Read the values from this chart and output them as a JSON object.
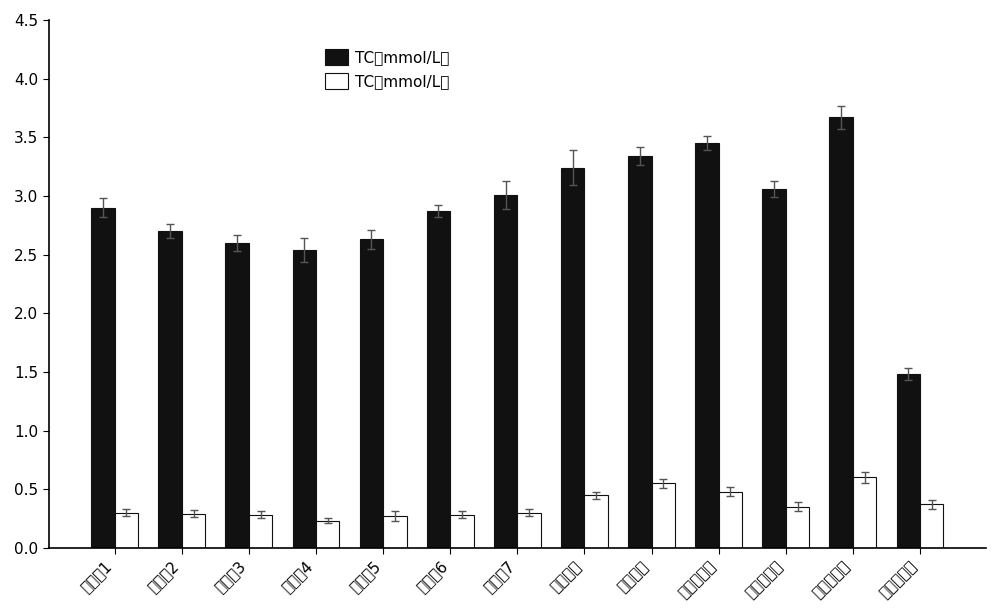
{
  "categories": [
    "实施例1",
    "实施例2",
    "实施例3",
    "实施例4",
    "实施例5",
    "实施例6",
    "实施例7",
    "人参多肽",
    "桑叶多肽",
    "苦瓜提取物",
    "阳性对照组",
    "模型对照组",
    "空白对照组"
  ],
  "black_values": [
    2.9,
    2.7,
    2.6,
    2.54,
    2.63,
    2.87,
    3.01,
    3.24,
    3.34,
    3.45,
    3.06,
    3.67,
    1.48
  ],
  "white_values": [
    0.3,
    0.29,
    0.28,
    0.23,
    0.27,
    0.28,
    0.3,
    0.45,
    0.55,
    0.48,
    0.35,
    0.6,
    0.37
  ],
  "black_errors": [
    0.08,
    0.06,
    0.07,
    0.1,
    0.08,
    0.05,
    0.12,
    0.15,
    0.08,
    0.06,
    0.07,
    0.1,
    0.05
  ],
  "white_errors": [
    0.03,
    0.03,
    0.03,
    0.02,
    0.04,
    0.03,
    0.03,
    0.03,
    0.04,
    0.04,
    0.04,
    0.05,
    0.04
  ],
  "legend_black": "TC（mmol/L）",
  "legend_white": "TC（mmol/L）",
  "ylim": [
    0,
    4.5
  ],
  "yticks": [
    0,
    0.5,
    1.0,
    1.5,
    2.0,
    2.5,
    3.0,
    3.5,
    4.0,
    4.5
  ],
  "bar_width": 0.35,
  "background_color": "#ffffff",
  "black_color": "#111111",
  "white_color": "#ffffff",
  "edge_color": "#111111"
}
